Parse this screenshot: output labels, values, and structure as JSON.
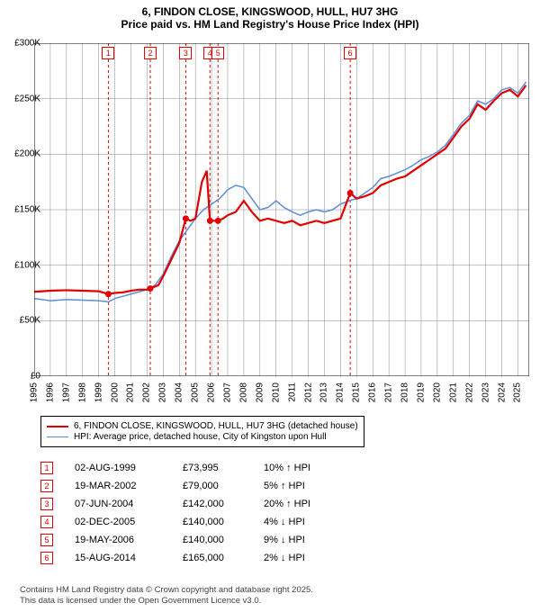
{
  "title_line1": "6, FINDON CLOSE, KINGSWOOD, HULL, HU7 3HG",
  "title_line2": "Price paid vs. HM Land Registry's House Price Index (HPI)",
  "chart": {
    "type": "line",
    "background_color": "#ffffff",
    "grid_color": "#888888",
    "sale_line_color": "#e00000",
    "sale_line_dash": "3,3",
    "xlim": [
      1995,
      2025.7
    ],
    "ylim": [
      0,
      300000
    ],
    "y_ticks": [
      0,
      50000,
      100000,
      150000,
      200000,
      250000,
      300000
    ],
    "y_tick_labels": [
      "£0",
      "£50K",
      "£100K",
      "£150K",
      "£200K",
      "£250K",
      "£300K"
    ],
    "x_ticks": [
      1995,
      1996,
      1997,
      1998,
      1999,
      2000,
      2001,
      2002,
      2003,
      2004,
      2005,
      2006,
      2007,
      2008,
      2009,
      2010,
      2011,
      2012,
      2013,
      2014,
      2015,
      2016,
      2017,
      2018,
      2019,
      2020,
      2021,
      2022,
      2023,
      2024,
      2025
    ],
    "axis_fontsize": 10,
    "series": [
      {
        "name": "6, FINDON CLOSE, KINGSWOOD, HULL, HU7 3HG (detached house)",
        "color": "#e00000",
        "width": 2.2,
        "points": [
          [
            1995,
            76000
          ],
          [
            1996,
            77000
          ],
          [
            1997,
            77500
          ],
          [
            1998,
            77000
          ],
          [
            1999,
            76500
          ],
          [
            1999.6,
            73995
          ],
          [
            2000,
            75000
          ],
          [
            2000.5,
            75500
          ],
          [
            2001,
            77000
          ],
          [
            2001.5,
            78000
          ],
          [
            2002,
            78000
          ],
          [
            2002.2,
            79000
          ],
          [
            2002.7,
            82000
          ],
          [
            2003,
            90000
          ],
          [
            2003.5,
            105000
          ],
          [
            2004,
            120000
          ],
          [
            2004.4,
            142000
          ],
          [
            2004.7,
            140000
          ],
          [
            2005,
            142000
          ],
          [
            2005.4,
            175000
          ],
          [
            2005.7,
            185000
          ],
          [
            2005.9,
            140000
          ],
          [
            2006.4,
            140000
          ],
          [
            2006.7,
            142000
          ],
          [
            2007,
            145000
          ],
          [
            2007.5,
            148000
          ],
          [
            2008,
            158000
          ],
          [
            2008.5,
            148000
          ],
          [
            2009,
            140000
          ],
          [
            2009.5,
            142000
          ],
          [
            2010,
            140000
          ],
          [
            2010.5,
            138000
          ],
          [
            2011,
            140000
          ],
          [
            2011.5,
            136000
          ],
          [
            2012,
            138000
          ],
          [
            2012.5,
            140000
          ],
          [
            2013,
            138000
          ],
          [
            2013.5,
            140000
          ],
          [
            2014,
            142000
          ],
          [
            2014.6,
            165000
          ],
          [
            2015,
            160000
          ],
          [
            2015.5,
            162000
          ],
          [
            2016,
            165000
          ],
          [
            2016.5,
            172000
          ],
          [
            2017,
            175000
          ],
          [
            2017.5,
            178000
          ],
          [
            2018,
            180000
          ],
          [
            2018.5,
            185000
          ],
          [
            2019,
            190000
          ],
          [
            2019.5,
            195000
          ],
          [
            2020,
            200000
          ],
          [
            2020.5,
            205000
          ],
          [
            2021,
            215000
          ],
          [
            2021.5,
            225000
          ],
          [
            2022,
            232000
          ],
          [
            2022.5,
            245000
          ],
          [
            2023,
            240000
          ],
          [
            2023.5,
            248000
          ],
          [
            2024,
            255000
          ],
          [
            2024.5,
            258000
          ],
          [
            2025,
            252000
          ],
          [
            2025.5,
            262000
          ]
        ]
      },
      {
        "name": "HPI: Average price, detached house, City of Kingston upon Hull",
        "color": "#5b8fd6",
        "width": 1.5,
        "points": [
          [
            1995,
            70000
          ],
          [
            1996,
            68000
          ],
          [
            1997,
            69000
          ],
          [
            1998,
            68500
          ],
          [
            1999,
            68000
          ],
          [
            1999.6,
            67000
          ],
          [
            2000,
            70000
          ],
          [
            2000.5,
            72000
          ],
          [
            2001,
            74000
          ],
          [
            2001.5,
            76000
          ],
          [
            2002,
            78000
          ],
          [
            2002.5,
            82000
          ],
          [
            2003,
            92000
          ],
          [
            2003.5,
            108000
          ],
          [
            2004,
            122000
          ],
          [
            2004.5,
            132000
          ],
          [
            2005,
            142000
          ],
          [
            2005.5,
            150000
          ],
          [
            2006,
            155000
          ],
          [
            2006.5,
            160000
          ],
          [
            2007,
            168000
          ],
          [
            2007.5,
            172000
          ],
          [
            2008,
            170000
          ],
          [
            2008.5,
            160000
          ],
          [
            2009,
            150000
          ],
          [
            2009.5,
            152000
          ],
          [
            2010,
            158000
          ],
          [
            2010.5,
            152000
          ],
          [
            2011,
            148000
          ],
          [
            2011.5,
            145000
          ],
          [
            2012,
            148000
          ],
          [
            2012.5,
            150000
          ],
          [
            2013,
            148000
          ],
          [
            2013.5,
            150000
          ],
          [
            2014,
            155000
          ],
          [
            2014.5,
            158000
          ],
          [
            2015,
            160000
          ],
          [
            2015.5,
            165000
          ],
          [
            2016,
            170000
          ],
          [
            2016.5,
            178000
          ],
          [
            2017,
            180000
          ],
          [
            2017.5,
            183000
          ],
          [
            2018,
            186000
          ],
          [
            2018.5,
            190000
          ],
          [
            2019,
            195000
          ],
          [
            2019.5,
            198000
          ],
          [
            2020,
            202000
          ],
          [
            2020.5,
            208000
          ],
          [
            2021,
            218000
          ],
          [
            2021.5,
            228000
          ],
          [
            2022,
            235000
          ],
          [
            2022.5,
            248000
          ],
          [
            2023,
            245000
          ],
          [
            2023.5,
            250000
          ],
          [
            2024,
            258000
          ],
          [
            2024.5,
            260000
          ],
          [
            2025,
            255000
          ],
          [
            2025.5,
            265000
          ]
        ]
      }
    ],
    "sale_markers": [
      {
        "n": "1",
        "x": 1999.6,
        "y": 73995
      },
      {
        "n": "2",
        "x": 2002.2,
        "y": 79000
      },
      {
        "n": "3",
        "x": 2004.4,
        "y": 142000
      },
      {
        "n": "4",
        "x": 2005.9,
        "y": 140000
      },
      {
        "n": "5",
        "x": 2006.4,
        "y": 140000
      },
      {
        "n": "6",
        "x": 2014.6,
        "y": 165000
      }
    ]
  },
  "sales": [
    {
      "n": "1",
      "date": "02-AUG-1999",
      "price": "£73,995",
      "delta": "10% ↑ HPI"
    },
    {
      "n": "2",
      "date": "19-MAR-2002",
      "price": "£79,000",
      "delta": "5% ↑ HPI"
    },
    {
      "n": "3",
      "date": "07-JUN-2004",
      "price": "£142,000",
      "delta": "20% ↑ HPI"
    },
    {
      "n": "4",
      "date": "02-DEC-2005",
      "price": "£140,000",
      "delta": "4% ↓ HPI"
    },
    {
      "n": "5",
      "date": "19-MAY-2006",
      "price": "£140,000",
      "delta": "9% ↓ HPI"
    },
    {
      "n": "6",
      "date": "15-AUG-2014",
      "price": "£165,000",
      "delta": "2% ↓ HPI"
    }
  ],
  "footer_line1": "Contains HM Land Registry data © Crown copyright and database right 2025.",
  "footer_line2": "This data is licensed under the Open Government Licence v3.0."
}
